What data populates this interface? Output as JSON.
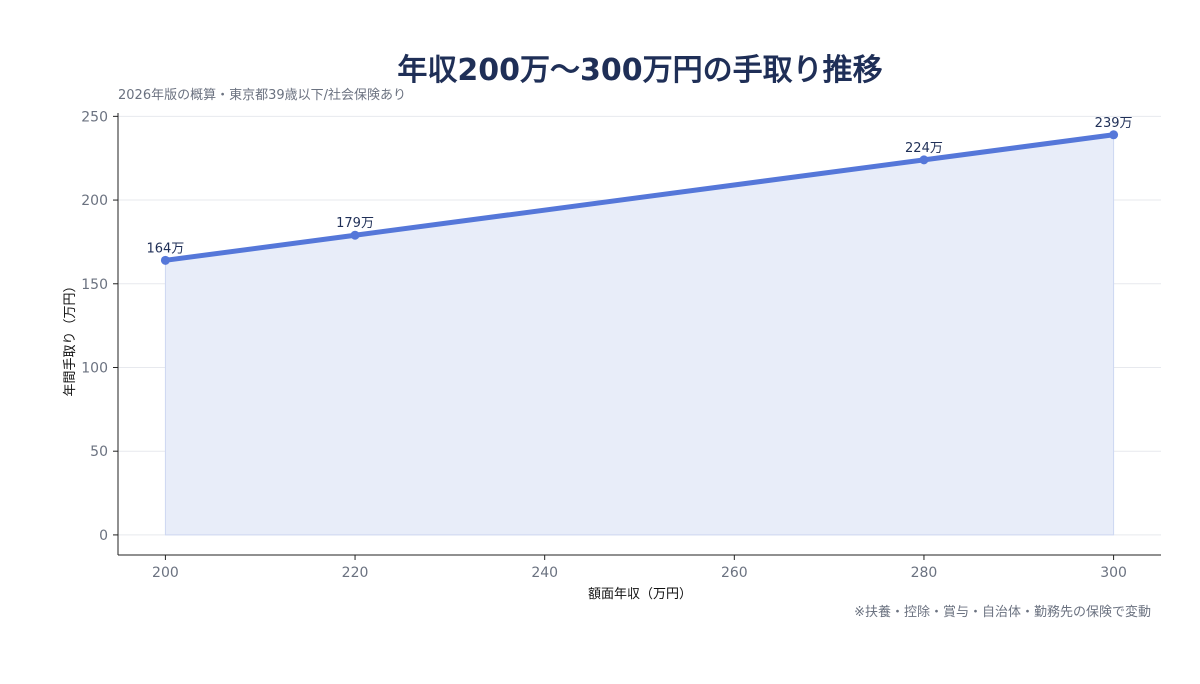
{
  "chart_data": {
    "type": "line",
    "title": "年収200万〜300万円の手取り推移",
    "subtitle": "2026年版の概算・東京都39歳以下/社会保険あり",
    "xlabel": "額面年収（万円）",
    "ylabel": "年間手取り（万円）",
    "note": "※扶養・控除・賞与・自治体・勤務先の保険で変動",
    "x": [
      200,
      220,
      280,
      300
    ],
    "y": [
      164,
      179,
      224,
      239
    ],
    "data_labels": [
      "164万",
      "179万",
      "224万",
      "239万"
    ],
    "xlim": [
      195,
      305
    ],
    "ylim": [
      -12,
      252
    ],
    "xticks": [
      200,
      220,
      240,
      260,
      280,
      300
    ],
    "yticks": [
      0,
      50,
      100,
      150,
      200,
      250
    ],
    "grid": true,
    "area_fill": true,
    "colors": {
      "line": "#5577d9",
      "fill": "#e8edf9",
      "title": "#1f2f57"
    }
  }
}
